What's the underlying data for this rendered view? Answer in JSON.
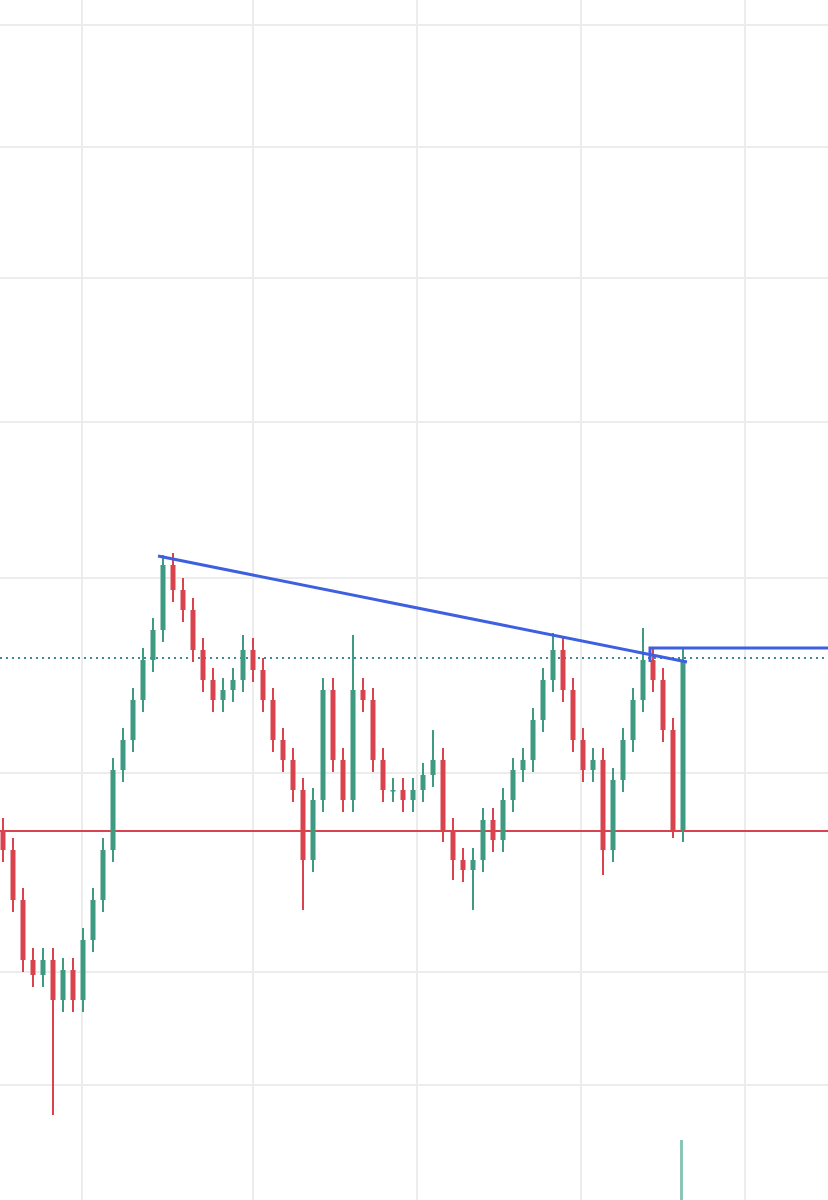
{
  "chart_data": {
    "type": "candlestick",
    "ylim": [
      0,
      1200
    ],
    "up_color": "#3f9a82",
    "down_color": "#d9434e",
    "open": [
      370,
      350,
      300,
      240,
      225,
      240,
      200,
      230,
      200,
      260,
      300,
      350,
      430,
      460,
      500,
      540,
      570,
      635,
      610,
      590,
      550,
      520,
      500,
      510,
      520,
      550,
      530,
      500,
      460,
      440,
      410,
      340,
      400,
      510,
      440,
      400,
      510,
      500,
      440,
      410,
      410,
      400,
      410,
      425,
      440,
      370,
      340,
      330,
      340,
      380,
      360,
      400,
      430,
      440,
      480,
      520,
      550,
      510,
      460,
      430,
      440,
      350,
      420,
      460,
      500,
      540,
      520,
      470,
      370
    ],
    "close": [
      350,
      300,
      240,
      225,
      240,
      200,
      230,
      200,
      260,
      300,
      350,
      430,
      460,
      500,
      540,
      570,
      635,
      610,
      590,
      550,
      520,
      500,
      510,
      520,
      550,
      530,
      500,
      460,
      440,
      410,
      340,
      400,
      510,
      440,
      400,
      510,
      500,
      440,
      410,
      410,
      400,
      410,
      425,
      440,
      370,
      340,
      330,
      340,
      380,
      360,
      400,
      430,
      440,
      480,
      520,
      550,
      510,
      460,
      430,
      440,
      350,
      420,
      460,
      500,
      540,
      520,
      470,
      370,
      540
    ],
    "high": [
      382,
      362,
      312,
      252,
      252,
      252,
      242,
      242,
      272,
      312,
      362,
      442,
      472,
      512,
      552,
      582,
      645,
      647,
      622,
      602,
      562,
      532,
      522,
      532,
      565,
      562,
      542,
      512,
      472,
      452,
      422,
      412,
      522,
      522,
      452,
      565,
      522,
      512,
      452,
      422,
      422,
      422,
      437,
      470,
      452,
      382,
      352,
      352,
      392,
      392,
      412,
      442,
      452,
      492,
      532,
      567,
      562,
      522,
      472,
      452,
      452,
      432,
      472,
      512,
      572,
      552,
      532,
      482,
      552
    ],
    "low": [
      338,
      288,
      228,
      213,
      213,
      85,
      188,
      188,
      188,
      248,
      288,
      338,
      418,
      448,
      488,
      528,
      558,
      598,
      578,
      538,
      508,
      488,
      488,
      498,
      508,
      518,
      488,
      448,
      428,
      398,
      290,
      328,
      388,
      428,
      388,
      388,
      488,
      428,
      398,
      398,
      388,
      388,
      398,
      413,
      358,
      320,
      318,
      290,
      328,
      348,
      348,
      388,
      418,
      428,
      468,
      508,
      498,
      448,
      418,
      418,
      325,
      338,
      408,
      448,
      488,
      508,
      458,
      362,
      358
    ]
  }
}
